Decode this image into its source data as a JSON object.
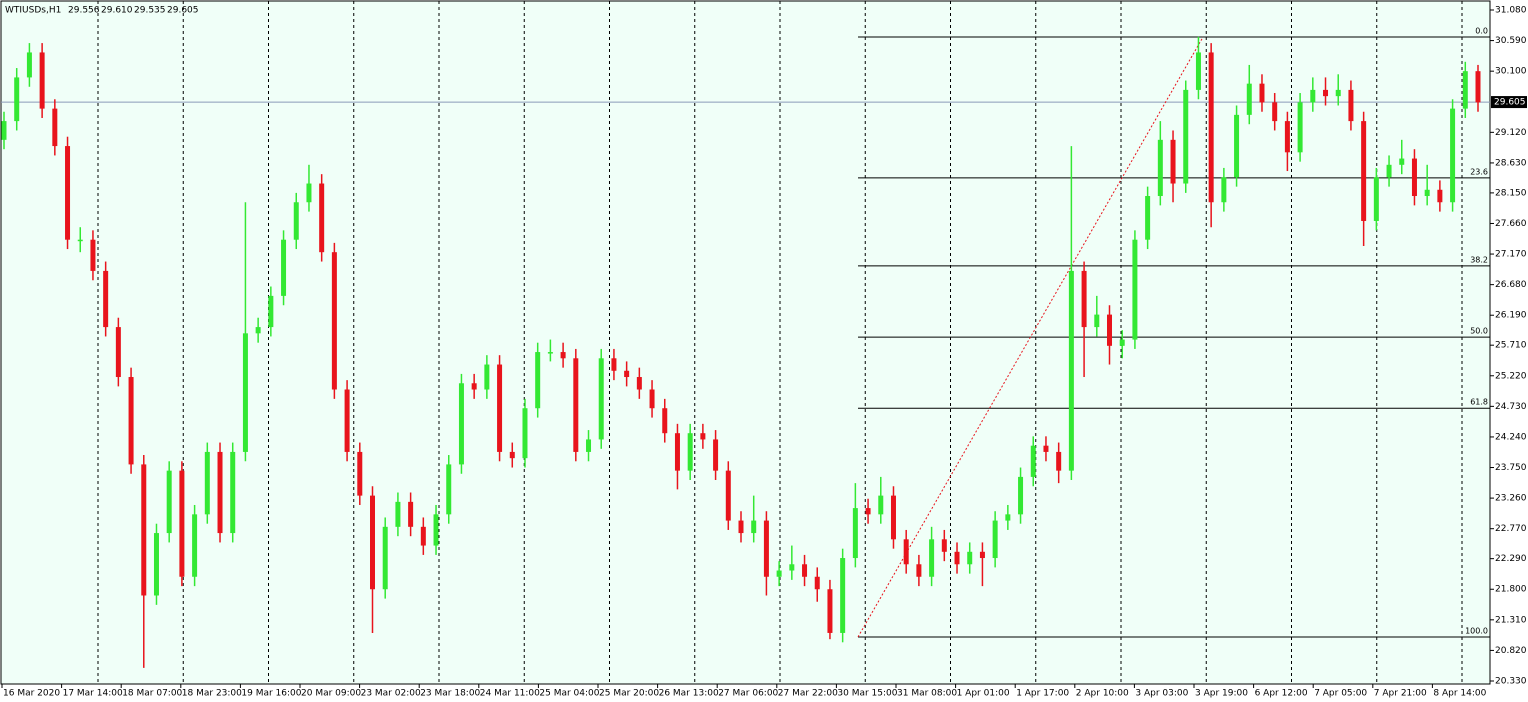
{
  "chart_data": {
    "type": "candlestick",
    "header": {
      "symbol": "WTIUSDs,H1",
      "ohlc": [
        "29.556",
        "29.610",
        "29.535",
        "29.605"
      ]
    },
    "bull_color": "#33e833",
    "bear_color": "#e8141c",
    "background": "#f0fff8",
    "grid": true,
    "ylim": [
      20.33,
      31.08
    ],
    "yticks": [
      {
        "value": 31.08,
        "label": "31.080"
      },
      {
        "value": 30.59,
        "label": "30.590"
      },
      {
        "value": 30.1,
        "label": "30.100"
      },
      {
        "value": 29.12,
        "label": "29.120"
      },
      {
        "value": 28.63,
        "label": "28.630"
      },
      {
        "value": 28.15,
        "label": "28.150"
      },
      {
        "value": 27.66,
        "label": "27.660"
      },
      {
        "value": 27.17,
        "label": "27.170"
      },
      {
        "value": 26.68,
        "label": "26.680"
      },
      {
        "value": 26.19,
        "label": "26.190"
      },
      {
        "value": 25.71,
        "label": "25.710"
      },
      {
        "value": 25.22,
        "label": "25.220"
      },
      {
        "value": 24.73,
        "label": "24.730"
      },
      {
        "value": 24.24,
        "label": "24.240"
      },
      {
        "value": 23.75,
        "label": "23.750"
      },
      {
        "value": 23.26,
        "label": "23.260"
      },
      {
        "value": 22.77,
        "label": "22.770"
      },
      {
        "value": 22.29,
        "label": "22.290"
      },
      {
        "value": 21.8,
        "label": "21.800"
      },
      {
        "value": 21.31,
        "label": "21.310"
      },
      {
        "value": 20.82,
        "label": "20.820"
      },
      {
        "value": 20.33,
        "label": "20.330"
      }
    ],
    "current_price": {
      "value": 29.605,
      "label": "29.605"
    },
    "categories": [
      "16 Mar 2020",
      "17 Mar 14:00",
      "18 Mar 07:00",
      "18 Mar 23:00",
      "19 Mar 16:00",
      "20 Mar 09:00",
      "23 Mar 02:00",
      "23 Mar 18:00",
      "24 Mar 11:00",
      "25 Mar 04:00",
      "25 Mar 20:00",
      "26 Mar 13:00",
      "27 Mar 06:00",
      "27 Mar 22:00",
      "30 Mar 15:00",
      "31 Mar 08:00",
      "1 Apr 01:00",
      "1 Apr 17:00",
      "2 Apr 10:00",
      "3 Apr 03:00",
      "3 Apr 19:00",
      "6 Apr 12:00",
      "7 Apr 05:00",
      "7 Apr 21:00",
      "8 Apr 14:00"
    ],
    "fib_levels": [
      {
        "label": "0.0",
        "price": 30.647
      },
      {
        "label": "23.6",
        "price": 28.39
      },
      {
        "label": "38.2",
        "price": 26.98
      },
      {
        "label": "50.0",
        "price": 25.84
      },
      {
        "label": "61.8",
        "price": 24.7
      },
      {
        "label": "100.0",
        "price": 21.035
      }
    ],
    "candles": [
      [
        29.0,
        29.45,
        28.85,
        29.3
      ],
      [
        29.3,
        30.15,
        29.15,
        30.0
      ],
      [
        30.0,
        30.55,
        29.85,
        30.4
      ],
      [
        30.4,
        30.55,
        29.35,
        29.5
      ],
      [
        29.5,
        29.65,
        28.75,
        28.9
      ],
      [
        28.9,
        29.05,
        27.25,
        27.4
      ],
      [
        27.4,
        27.6,
        27.2,
        27.4
      ],
      [
        27.4,
        27.55,
        26.75,
        26.9
      ],
      [
        26.9,
        27.05,
        25.85,
        26.0
      ],
      [
        26.0,
        26.15,
        25.05,
        25.2
      ],
      [
        25.2,
        25.35,
        23.65,
        23.8
      ],
      [
        23.8,
        23.95,
        20.54,
        21.7
      ],
      [
        21.7,
        22.85,
        21.55,
        22.7
      ],
      [
        22.7,
        23.85,
        22.55,
        23.7
      ],
      [
        23.7,
        23.85,
        21.85,
        22.0
      ],
      [
        22.0,
        23.15,
        21.85,
        23.0
      ],
      [
        23.0,
        24.15,
        22.85,
        24.0
      ],
      [
        24.0,
        24.15,
        22.55,
        22.7
      ],
      [
        22.7,
        24.15,
        22.55,
        24.0
      ],
      [
        24.0,
        28.0,
        23.85,
        25.9
      ],
      [
        25.9,
        26.15,
        25.75,
        26.0
      ],
      [
        26.0,
        26.65,
        25.85,
        26.5
      ],
      [
        26.5,
        27.55,
        26.35,
        27.4
      ],
      [
        27.4,
        28.15,
        27.25,
        28.0
      ],
      [
        28.0,
        28.6,
        27.85,
        28.3
      ],
      [
        28.3,
        28.45,
        27.05,
        27.2
      ],
      [
        27.2,
        27.35,
        24.85,
        25.0
      ],
      [
        25.0,
        25.15,
        23.85,
        24.0
      ],
      [
        24.0,
        24.15,
        23.15,
        23.3
      ],
      [
        23.3,
        23.45,
        21.1,
        21.8
      ],
      [
        21.8,
        22.95,
        21.65,
        22.8
      ],
      [
        22.8,
        23.35,
        22.65,
        23.2
      ],
      [
        23.2,
        23.35,
        22.65,
        22.8
      ],
      [
        22.8,
        22.95,
        22.35,
        22.5
      ],
      [
        22.5,
        23.15,
        22.35,
        23.0
      ],
      [
        23.0,
        23.95,
        22.85,
        23.8
      ],
      [
        23.8,
        25.25,
        23.65,
        25.1
      ],
      [
        25.1,
        25.25,
        24.85,
        25.0
      ],
      [
        25.0,
        25.55,
        24.85,
        25.4
      ],
      [
        25.4,
        25.55,
        23.85,
        24.0
      ],
      [
        24.0,
        24.15,
        23.75,
        23.9
      ],
      [
        23.9,
        24.85,
        23.75,
        24.7
      ],
      [
        24.7,
        25.75,
        24.55,
        25.6
      ],
      [
        25.6,
        25.8,
        25.45,
        25.6
      ],
      [
        25.6,
        25.75,
        25.35,
        25.5
      ],
      [
        25.5,
        25.65,
        23.85,
        24.0
      ],
      [
        24.0,
        24.35,
        23.85,
        24.2
      ],
      [
        24.2,
        25.65,
        24.05,
        25.5
      ],
      [
        25.5,
        25.65,
        25.15,
        25.3
      ],
      [
        25.3,
        25.45,
        25.05,
        25.2
      ],
      [
        25.2,
        25.35,
        24.85,
        25.0
      ],
      [
        25.0,
        25.15,
        24.55,
        24.7
      ],
      [
        24.7,
        24.85,
        24.15,
        24.3
      ],
      [
        24.3,
        24.45,
        23.4,
        23.7
      ],
      [
        23.7,
        24.45,
        23.55,
        24.3
      ],
      [
        24.3,
        24.45,
        24.05,
        24.2
      ],
      [
        24.2,
        24.35,
        23.55,
        23.7
      ],
      [
        23.7,
        23.85,
        22.75,
        22.9
      ],
      [
        22.9,
        23.05,
        22.55,
        22.7
      ],
      [
        22.7,
        23.3,
        22.55,
        22.9
      ],
      [
        22.9,
        23.05,
        21.7,
        22.0
      ],
      [
        22.0,
        22.25,
        21.85,
        22.1
      ],
      [
        22.1,
        22.5,
        21.95,
        22.2
      ],
      [
        22.2,
        22.35,
        21.85,
        22.0
      ],
      [
        22.0,
        22.15,
        21.6,
        21.8
      ],
      [
        21.8,
        21.95,
        21.0,
        21.1
      ],
      [
        21.1,
        22.45,
        20.95,
        22.3
      ],
      [
        22.3,
        23.5,
        22.15,
        23.1
      ],
      [
        23.1,
        23.25,
        22.85,
        23.0
      ],
      [
        23.0,
        23.6,
        22.85,
        23.3
      ],
      [
        23.3,
        23.45,
        22.45,
        22.6
      ],
      [
        22.6,
        22.75,
        22.05,
        22.2
      ],
      [
        22.2,
        22.35,
        21.85,
        22.0
      ],
      [
        22.0,
        22.8,
        21.85,
        22.6
      ],
      [
        22.6,
        22.75,
        22.25,
        22.4
      ],
      [
        22.4,
        22.55,
        22.05,
        22.2
      ],
      [
        22.2,
        22.55,
        22.05,
        22.4
      ],
      [
        22.4,
        22.55,
        21.85,
        22.3
      ],
      [
        22.3,
        23.05,
        22.15,
        22.9
      ],
      [
        22.9,
        23.15,
        22.75,
        23.0
      ],
      [
        23.0,
        23.75,
        22.85,
        23.6
      ],
      [
        23.6,
        24.25,
        23.45,
        24.1
      ],
      [
        24.1,
        24.25,
        23.85,
        24.0
      ],
      [
        24.0,
        24.15,
        23.5,
        23.7
      ],
      [
        23.7,
        28.9,
        23.55,
        26.9
      ],
      [
        26.9,
        27.05,
        25.2,
        26.0
      ],
      [
        26.0,
        26.5,
        25.85,
        26.2
      ],
      [
        26.2,
        26.35,
        25.4,
        25.7
      ],
      [
        25.7,
        25.95,
        25.5,
        25.8
      ],
      [
        25.8,
        27.55,
        25.65,
        27.4
      ],
      [
        27.4,
        28.25,
        27.25,
        28.1
      ],
      [
        28.1,
        29.3,
        27.95,
        29.0
      ],
      [
        29.0,
        29.15,
        28.0,
        28.3
      ],
      [
        28.3,
        29.95,
        28.15,
        29.8
      ],
      [
        29.8,
        30.65,
        29.65,
        30.4
      ],
      [
        30.4,
        30.55,
        27.6,
        28.0
      ],
      [
        28.0,
        28.55,
        27.85,
        28.4
      ],
      [
        28.4,
        29.55,
        28.25,
        29.4
      ],
      [
        29.4,
        30.2,
        29.25,
        29.9
      ],
      [
        29.9,
        30.05,
        29.45,
        29.6
      ],
      [
        29.6,
        29.75,
        29.15,
        29.3
      ],
      [
        29.3,
        29.45,
        28.5,
        28.8
      ],
      [
        28.8,
        29.75,
        28.65,
        29.6
      ],
      [
        29.6,
        30.0,
        29.45,
        29.8
      ],
      [
        29.8,
        30.0,
        29.55,
        29.7
      ],
      [
        29.7,
        30.05,
        29.55,
        29.8
      ],
      [
        29.8,
        29.95,
        29.15,
        29.3
      ],
      [
        29.3,
        29.45,
        27.3,
        27.7
      ],
      [
        27.7,
        28.55,
        27.55,
        28.4
      ],
      [
        28.4,
        28.75,
        28.25,
        28.6
      ],
      [
        28.6,
        29.0,
        28.45,
        28.7
      ],
      [
        28.7,
        28.85,
        27.95,
        28.1
      ],
      [
        28.1,
        28.6,
        27.95,
        28.2
      ],
      [
        28.2,
        28.35,
        27.85,
        28.0
      ],
      [
        28.0,
        29.65,
        27.85,
        29.5
      ],
      [
        29.5,
        30.25,
        29.35,
        30.1
      ],
      [
        30.1,
        30.2,
        29.45,
        29.6
      ]
    ]
  }
}
